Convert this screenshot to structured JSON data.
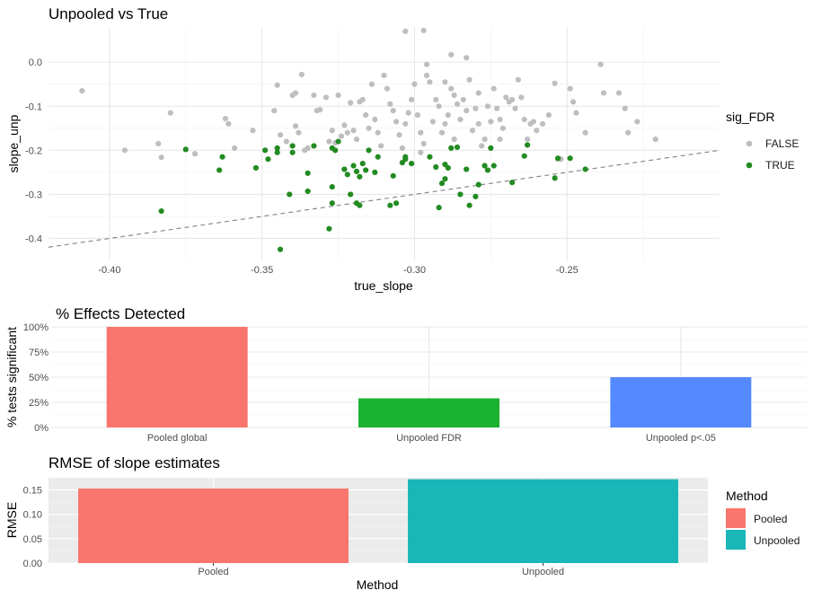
{
  "chart_data": [
    {
      "type": "scatter",
      "title": "Unpooled vs True",
      "xlabel": "true_slope",
      "ylabel": "slope_unp",
      "xlim": [
        -0.42,
        -0.2
      ],
      "ylim": [
        -0.45,
        0.08
      ],
      "xticks": [
        "-0.40",
        "-0.35",
        "-0.30",
        "-0.25"
      ],
      "yticks": [
        "0.0",
        "-0.1",
        "-0.2",
        "-0.3",
        "-0.4"
      ],
      "grid": true,
      "legend": {
        "title": "sig_FDR",
        "position": "right"
      },
      "reference_line": {
        "slope": 1,
        "intercept": 0,
        "style": "dashed",
        "color": "#808080"
      },
      "colors": {
        "FALSE": "#bebebe",
        "TRUE": "#228b22"
      },
      "series": [
        {
          "name": "FALSE",
          "points": [
            [
              -0.409,
              -0.065
            ],
            [
              -0.395,
              -0.2
            ],
            [
              -0.384,
              -0.185
            ],
            [
              -0.383,
              -0.216
            ],
            [
              -0.38,
              -0.115
            ],
            [
              -0.372,
              -0.208
            ],
            [
              -0.362,
              -0.128
            ],
            [
              -0.361,
              -0.14
            ],
            [
              -0.359,
              -0.195
            ],
            [
              -0.353,
              -0.155
            ],
            [
              -0.346,
              -0.11
            ],
            [
              -0.345,
              -0.052
            ],
            [
              -0.344,
              -0.165
            ],
            [
              -0.342,
              -0.18
            ],
            [
              -0.34,
              -0.075
            ],
            [
              -0.339,
              -0.07
            ],
            [
              -0.339,
              -0.145
            ],
            [
              -0.338,
              -0.16
            ],
            [
              -0.337,
              -0.028
            ],
            [
              -0.336,
              -0.2
            ],
            [
              -0.335,
              -0.195
            ],
            [
              -0.333,
              -0.075
            ],
            [
              -0.332,
              -0.11
            ],
            [
              -0.331,
              -0.108
            ],
            [
              -0.329,
              -0.08
            ],
            [
              -0.328,
              -0.18
            ],
            [
              -0.327,
              -0.155
            ],
            [
              -0.326,
              -0.183
            ],
            [
              -0.325,
              -0.075
            ],
            [
              -0.324,
              -0.168
            ],
            [
              -0.323,
              -0.143
            ],
            [
              -0.322,
              -0.16
            ],
            [
              -0.321,
              -0.092
            ],
            [
              -0.32,
              -0.155
            ],
            [
              -0.319,
              -0.175
            ],
            [
              -0.318,
              -0.09
            ],
            [
              -0.317,
              -0.085
            ],
            [
              -0.316,
              -0.12
            ],
            [
              -0.315,
              -0.15
            ],
            [
              -0.314,
              -0.05
            ],
            [
              -0.313,
              -0.13
            ],
            [
              -0.312,
              -0.16
            ],
            [
              -0.311,
              -0.19
            ],
            [
              -0.31,
              -0.03
            ],
            [
              -0.309,
              -0.06
            ],
            [
              -0.308,
              -0.095
            ],
            [
              -0.307,
              -0.11
            ],
            [
              -0.306,
              -0.135
            ],
            [
              -0.305,
              -0.165
            ],
            [
              -0.304,
              -0.195
            ],
            [
              -0.303,
              -0.14
            ],
            [
              -0.302,
              -0.115
            ],
            [
              -0.301,
              -0.085
            ],
            [
              -0.3,
              -0.05
            ],
            [
              -0.299,
              -0.12
            ],
            [
              -0.298,
              -0.16
            ],
            [
              -0.297,
              -0.185
            ],
            [
              -0.296,
              -0.03
            ],
            [
              -0.295,
              -0.045
            ],
            [
              -0.294,
              -0.135
            ],
            [
              -0.293,
              -0.085
            ],
            [
              -0.292,
              -0.1
            ],
            [
              -0.291,
              -0.16
            ],
            [
              -0.29,
              -0.14
            ],
            [
              -0.289,
              -0.12
            ],
            [
              -0.288,
              -0.06
            ],
            [
              -0.287,
              -0.075
            ],
            [
              -0.286,
              -0.095
            ],
            [
              -0.285,
              -0.13
            ],
            [
              -0.284,
              -0.085
            ],
            [
              -0.283,
              -0.11
            ],
            [
              -0.282,
              -0.04
            ],
            [
              -0.281,
              -0.155
            ],
            [
              -0.28,
              -0.105
            ],
            [
              -0.279,
              -0.07
            ],
            [
              -0.278,
              -0.19
            ],
            [
              -0.277,
              -0.175
            ],
            [
              -0.276,
              -0.1
            ],
            [
              -0.275,
              -0.135
            ],
            [
              -0.274,
              -0.06
            ],
            [
              -0.273,
              -0.105
            ],
            [
              -0.272,
              -0.175
            ],
            [
              -0.271,
              -0.15
            ],
            [
              -0.27,
              -0.08
            ],
            [
              -0.269,
              -0.09
            ],
            [
              -0.268,
              -0.085
            ],
            [
              -0.267,
              -0.105
            ],
            [
              -0.266,
              -0.04
            ],
            [
              -0.265,
              -0.08
            ],
            [
              -0.264,
              -0.13
            ],
            [
              -0.263,
              -0.175
            ],
            [
              -0.262,
              -0.14
            ],
            [
              -0.261,
              -0.135
            ],
            [
              -0.26,
              -0.155
            ],
            [
              -0.258,
              -0.14
            ],
            [
              -0.256,
              -0.12
            ],
            [
              -0.254,
              -0.048
            ],
            [
              -0.253,
              -0.22
            ],
            [
              -0.252,
              -0.22
            ],
            [
              -0.249,
              -0.06
            ],
            [
              -0.248,
              -0.09
            ],
            [
              -0.247,
              -0.115
            ],
            [
              -0.244,
              -0.16
            ],
            [
              -0.239,
              -0.005
            ],
            [
              -0.238,
              -0.07
            ],
            [
              -0.233,
              -0.07
            ],
            [
              -0.231,
              -0.105
            ],
            [
              -0.23,
              -0.16
            ],
            [
              -0.227,
              -0.135
            ],
            [
              -0.221,
              -0.175
            ],
            [
              -0.303,
              0.07
            ],
            [
              -0.297,
              0.072
            ],
            [
              -0.288,
              0.017
            ],
            [
              -0.283,
              0.01
            ],
            [
              -0.29,
              -0.045
            ],
            [
              -0.296,
              -0.005
            ],
            [
              -0.298,
              -0.205
            ],
            [
              -0.287,
              -0.175
            ],
            [
              -0.279,
              -0.14
            ],
            [
              -0.272,
              -0.13
            ]
          ]
        },
        {
          "name": "TRUE",
          "points": [
            [
              -0.383,
              -0.338
            ],
            [
              -0.375,
              -0.198
            ],
            [
              -0.364,
              -0.245
            ],
            [
              -0.363,
              -0.215
            ],
            [
              -0.352,
              -0.24
            ],
            [
              -0.349,
              -0.2
            ],
            [
              -0.348,
              -0.22
            ],
            [
              -0.345,
              -0.205
            ],
            [
              -0.344,
              -0.425
            ],
            [
              -0.341,
              -0.3
            ],
            [
              -0.34,
              -0.205
            ],
            [
              -0.34,
              -0.19
            ],
            [
              -0.335,
              -0.252
            ],
            [
              -0.335,
              -0.293
            ],
            [
              -0.328,
              -0.378
            ],
            [
              -0.327,
              -0.32
            ],
            [
              -0.327,
              -0.283
            ],
            [
              -0.326,
              -0.2
            ],
            [
              -0.325,
              -0.18
            ],
            [
              -0.323,
              -0.243
            ],
            [
              -0.322,
              -0.255
            ],
            [
              -0.321,
              -0.3
            ],
            [
              -0.32,
              -0.235
            ],
            [
              -0.319,
              -0.32
            ],
            [
              -0.319,
              -0.248
            ],
            [
              -0.318,
              -0.325
            ],
            [
              -0.318,
              -0.26
            ],
            [
              -0.317,
              -0.23
            ],
            [
              -0.316,
              -0.245
            ],
            [
              -0.315,
              -0.2
            ],
            [
              -0.313,
              -0.25
            ],
            [
              -0.312,
              -0.215
            ],
            [
              -0.308,
              -0.325
            ],
            [
              -0.307,
              -0.258
            ],
            [
              -0.306,
              -0.32
            ],
            [
              -0.304,
              -0.228
            ],
            [
              -0.303,
              -0.22
            ],
            [
              -0.301,
              -0.23
            ],
            [
              -0.303,
              -0.215
            ],
            [
              -0.295,
              -0.215
            ],
            [
              -0.293,
              -0.238
            ],
            [
              -0.292,
              -0.33
            ],
            [
              -0.291,
              -0.275
            ],
            [
              -0.29,
              -0.265
            ],
            [
              -0.29,
              -0.232
            ],
            [
              -0.288,
              -0.195
            ],
            [
              -0.286,
              -0.193
            ],
            [
              -0.285,
              -0.3
            ],
            [
              -0.283,
              -0.243
            ],
            [
              -0.282,
              -0.325
            ],
            [
              -0.28,
              -0.305
            ],
            [
              -0.279,
              -0.278
            ],
            [
              -0.277,
              -0.235
            ],
            [
              -0.276,
              -0.245
            ],
            [
              -0.275,
              -0.195
            ],
            [
              -0.274,
              -0.235
            ],
            [
              -0.268,
              -0.273
            ],
            [
              -0.264,
              -0.213
            ],
            [
              -0.263,
              -0.188
            ],
            [
              -0.254,
              -0.263
            ],
            [
              -0.253,
              -0.218
            ],
            [
              -0.249,
              -0.218
            ],
            [
              -0.244,
              -0.243
            ],
            [
              -0.289,
              -0.24
            ],
            [
              -0.327,
              -0.195
            ],
            [
              -0.333,
              -0.19
            ],
            [
              -0.345,
              -0.195
            ]
          ]
        }
      ]
    },
    {
      "type": "bar",
      "title": "% Effects Detected",
      "xlabel": "",
      "ylabel": "% tests significant",
      "categories": [
        "Pooled global",
        "Unpooled FDR",
        "Unpooled p<.05"
      ],
      "values": [
        1.0,
        0.29,
        0.5
      ],
      "ylim": [
        0,
        1
      ],
      "yticks": [
        "0%",
        "25%",
        "50%",
        "75%",
        "100%"
      ],
      "colors": [
        "#f8766d",
        "#1ab22f",
        "#558aff"
      ],
      "grid": true
    },
    {
      "type": "bar",
      "title": "RMSE of slope estimates",
      "xlabel": "Method",
      "ylabel": "RMSE",
      "categories": [
        "Pooled",
        "Unpooled"
      ],
      "values": [
        0.153,
        0.172
      ],
      "ylim": [
        0,
        0.175
      ],
      "yticks": [
        "0.00",
        "0.05",
        "0.10",
        "0.15"
      ],
      "colors": [
        "#f8766d",
        "#1ab7b9"
      ],
      "panel_background": "#ebebeb",
      "grid": true,
      "legend": {
        "title": "Method",
        "labels": [
          "Pooled",
          "Unpooled"
        ],
        "position": "right"
      }
    }
  ]
}
